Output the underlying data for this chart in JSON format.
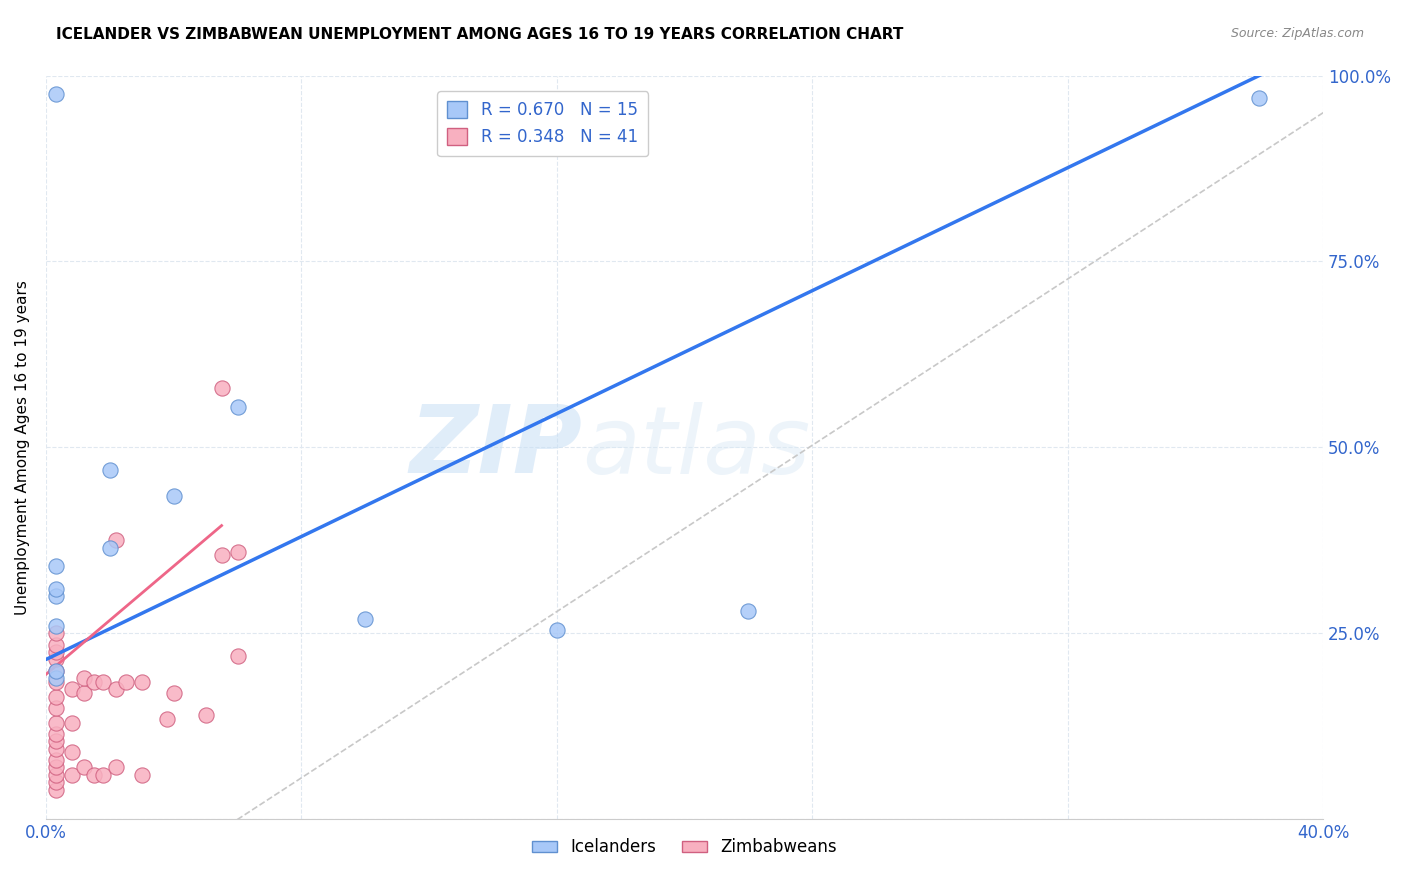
{
  "title": "ICELANDER VS ZIMBABWEAN UNEMPLOYMENT AMONG AGES 16 TO 19 YEARS CORRELATION CHART",
  "source": "Source: ZipAtlas.com",
  "xlabel": "",
  "ylabel": "Unemployment Among Ages 16 to 19 years",
  "xlim": [
    0.0,
    0.4
  ],
  "ylim": [
    0.0,
    1.0
  ],
  "xticks": [
    0.0,
    0.08,
    0.16,
    0.24,
    0.32,
    0.4
  ],
  "xtick_labels": [
    "0.0%",
    "",
    "",
    "",
    "",
    "40.0%"
  ],
  "yticks": [
    0.0,
    0.25,
    0.5,
    0.75,
    1.0
  ],
  "ytick_labels": [
    "",
    "25.0%",
    "50.0%",
    "75.0%",
    "100.0%"
  ],
  "icelander_color": "#a8c8f8",
  "zimbabwean_color": "#f8b0c0",
  "icelander_edge": "#6090d0",
  "zimbabwean_edge": "#d06080",
  "trend_blue_color": "#3377ee",
  "trend_gray_color": "#c8c8c8",
  "trend_pink_color": "#ee6688",
  "legend_R_icelander": "R = 0.670",
  "legend_N_icelander": "N = 15",
  "legend_R_zimbabwean": "R = 0.348",
  "legend_N_zimbabwean": "N = 41",
  "watermark_zip": "ZIP",
  "watermark_atlas": "atlas",
  "icelander_x": [
    0.003,
    0.02,
    0.02,
    0.04,
    0.003,
    0.003,
    0.003,
    0.06,
    0.1,
    0.16,
    0.22,
    0.003,
    0.38,
    0.003,
    0.003
  ],
  "icelander_y": [
    0.34,
    0.365,
    0.47,
    0.435,
    0.3,
    0.31,
    0.26,
    0.555,
    0.27,
    0.255,
    0.28,
    0.975,
    0.97,
    0.19,
    0.2
  ],
  "zimbabwean_x": [
    0.003,
    0.003,
    0.003,
    0.003,
    0.003,
    0.003,
    0.003,
    0.003,
    0.003,
    0.003,
    0.003,
    0.003,
    0.003,
    0.003,
    0.003,
    0.003,
    0.003,
    0.008,
    0.008,
    0.008,
    0.008,
    0.012,
    0.012,
    0.012,
    0.015,
    0.015,
    0.018,
    0.018,
    0.022,
    0.022,
    0.022,
    0.025,
    0.03,
    0.03,
    0.038,
    0.04,
    0.05,
    0.055,
    0.055,
    0.06,
    0.06
  ],
  "zimbabwean_y": [
    0.04,
    0.05,
    0.06,
    0.07,
    0.08,
    0.095,
    0.105,
    0.115,
    0.13,
    0.15,
    0.165,
    0.185,
    0.2,
    0.215,
    0.225,
    0.235,
    0.25,
    0.06,
    0.09,
    0.13,
    0.175,
    0.07,
    0.17,
    0.19,
    0.06,
    0.185,
    0.06,
    0.185,
    0.07,
    0.175,
    0.375,
    0.185,
    0.06,
    0.185,
    0.135,
    0.17,
    0.14,
    0.58,
    0.355,
    0.22,
    0.36
  ],
  "blue_line_x0": 0.0,
  "blue_line_y0": 0.215,
  "blue_line_x1": 0.38,
  "blue_line_y1": 1.0,
  "gray_line_x0": 0.06,
  "gray_line_y0": 0.0,
  "gray_line_x1": 0.4,
  "gray_line_y1": 0.95,
  "pink_line_x0": 0.0,
  "pink_line_y0": 0.195,
  "pink_line_x1": 0.055,
  "pink_line_y1": 0.395,
  "marker_size": 120
}
